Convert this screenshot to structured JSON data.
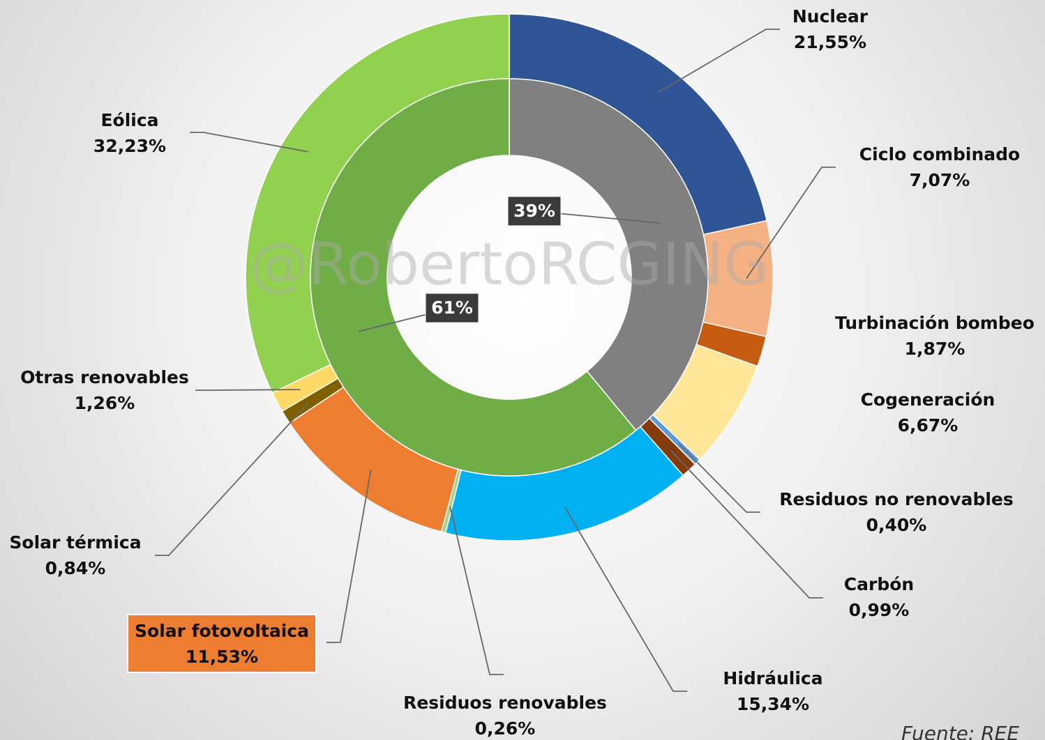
{
  "chart_data": {
    "type": "donut",
    "outer": {
      "categories": [
        "Nuclear",
        "Ciclo combinado",
        "Turbinación bombeo",
        "Cogeneración",
        "Residuos no renovables",
        "Carbón",
        "Hidráulica",
        "Residuos renovables",
        "Solar fotovoltaica",
        "Solar térmica",
        "Otras renovables",
        "Eólica"
      ],
      "values": [
        21.55,
        7.07,
        1.87,
        6.67,
        0.4,
        0.99,
        15.34,
        0.26,
        11.53,
        0.84,
        1.26,
        32.23
      ],
      "value_labels": [
        "21,55%",
        "7,07%",
        "1,87%",
        "6,67%",
        "0,40%",
        "0,99%",
        "15,34%",
        "0,26%",
        "11,53%",
        "0,84%",
        "1,26%",
        "32,23%"
      ],
      "colors": [
        "#2f5597",
        "#f4b183",
        "#c55a11",
        "#ffe699",
        "#5b9bd5",
        "#843c0c",
        "#00b0f0",
        "#a9d18e",
        "#ed7d31",
        "#7f6000",
        "#ffd966",
        "#92d050"
      ]
    },
    "inner": {
      "values": [
        39,
        61
      ],
      "value_labels": [
        "39%",
        "61%"
      ],
      "colors": [
        "#808080",
        "#70ad47"
      ]
    },
    "watermark": "@RobertoRCGING",
    "source": "Fuente: REE"
  }
}
